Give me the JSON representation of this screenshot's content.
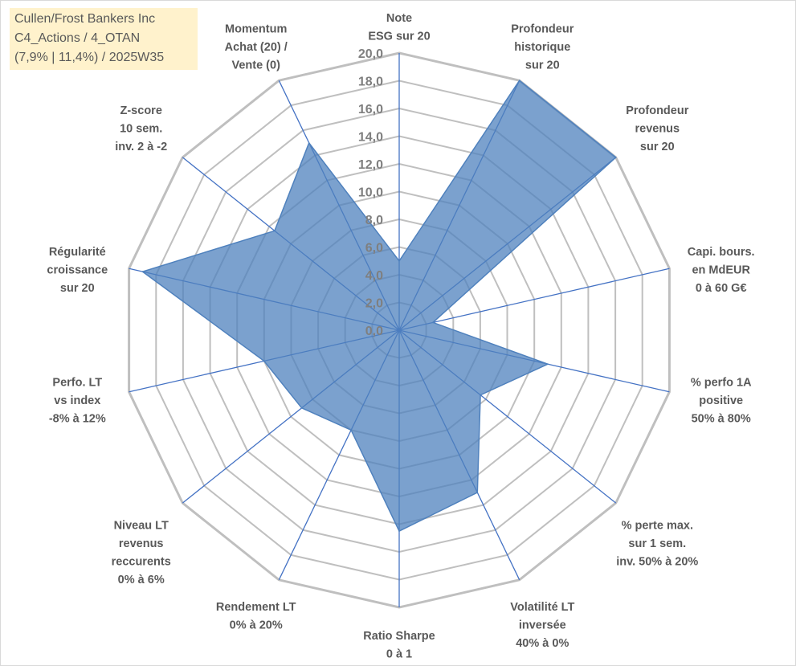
{
  "info_box": {
    "line1": "Cullen/Frost Bankers Inc",
    "line2": "C4_Actions / 4_OTAN",
    "line3": "(7,9% | 11,4%) / 2025W35"
  },
  "chart_data": {
    "type": "radar",
    "axis_range": [
      0,
      20
    ],
    "ticks": [
      "0,0",
      "2,0",
      "4,0",
      "6,0",
      "8,0",
      "10,0",
      "12,0",
      "14,0",
      "16,0",
      "18,0",
      "20,0"
    ],
    "gridlines": true,
    "legend": "none",
    "fill_color": "#4f81bd",
    "axis_color": "#4472c4",
    "grid_color": "#bfbfbf",
    "categories": [
      [
        "Note",
        "ESG sur 20"
      ],
      [
        "Profondeur",
        "historique",
        "sur 20"
      ],
      [
        "Profondeur",
        "revenus",
        "sur 20"
      ],
      [
        "Capi. bours.",
        "en MdEUR",
        "0 à 60 G€"
      ],
      [
        "% perfo 1A",
        "positive",
        "50% à 80%"
      ],
      [
        "% perte max.",
        "sur 1 sem.",
        "inv. 50% à 20%"
      ],
      [
        "Volatilité LT",
        "inversée",
        "40% à 0%"
      ],
      [
        "Ratio Sharpe",
        "0 à 1"
      ],
      [
        "Rendement LT",
        "0% à 20%"
      ],
      [
        "Niveau LT",
        "revenus",
        "reccurents",
        "0% à 6%"
      ],
      [
        "Perfo. LT",
        "vs index",
        "-8% à 12%"
      ],
      [
        "Régularité",
        "croissance",
        "sur 20"
      ],
      [
        "Z-score",
        "10 sem.",
        "inv. 2 à -2"
      ],
      [
        "Momentum",
        "Achat (20) /",
        "Vente (0)"
      ]
    ],
    "series": [
      {
        "values": [
          5.0,
          20.0,
          20.0,
          2.5,
          11.0,
          7.5,
          13.0,
          14.5,
          8.0,
          9.0,
          10.0,
          19.0,
          11.5,
          15.0
        ]
      }
    ]
  }
}
